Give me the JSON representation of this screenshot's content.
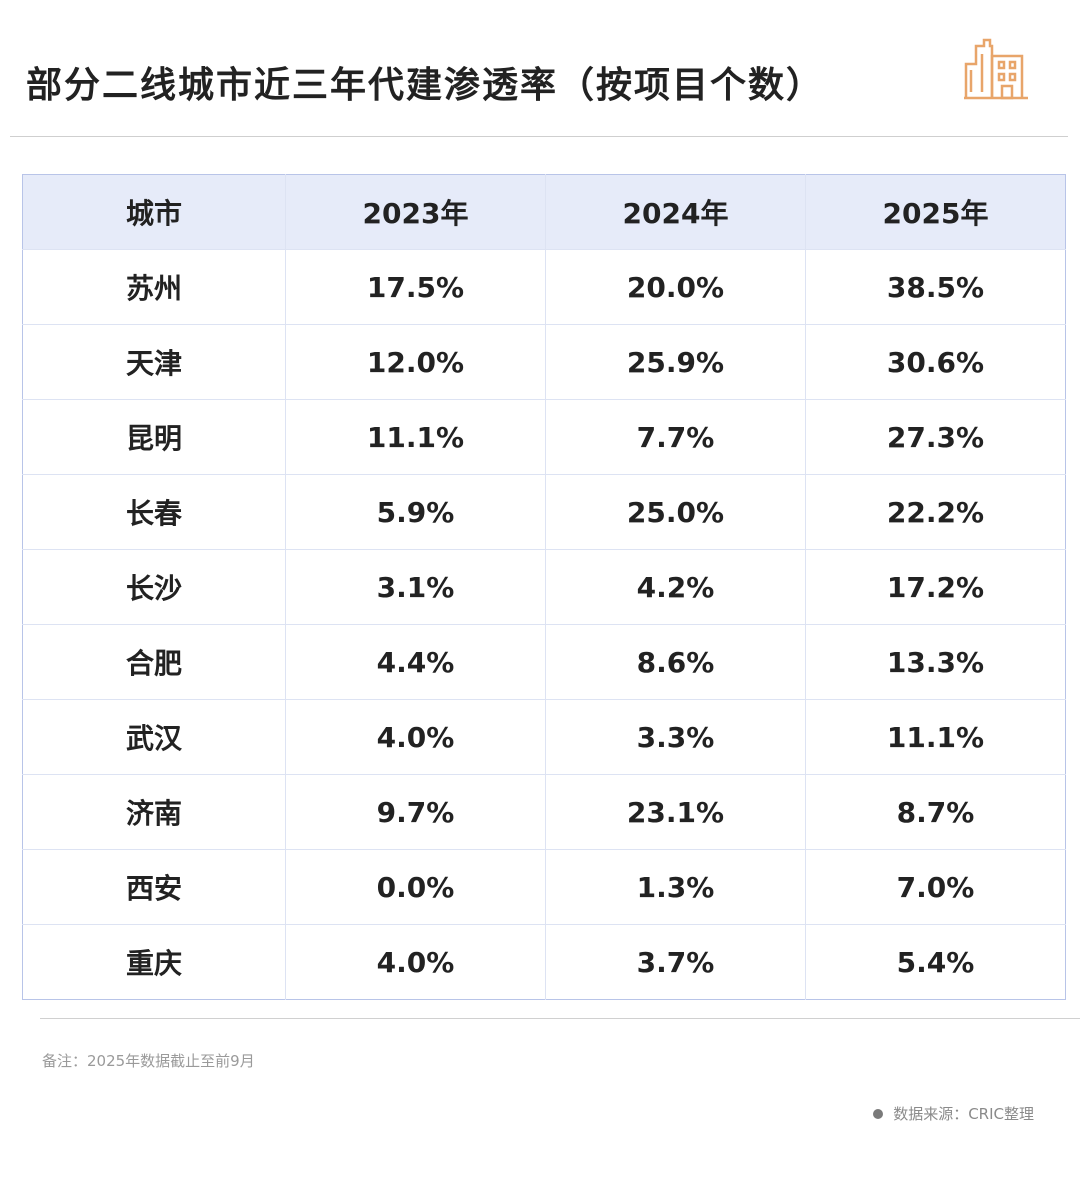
{
  "page_title": "部分二线城市近三年代建渗透率（按项目个数）",
  "logo_icon": "building-icon",
  "accent_color": "#e6ebf9",
  "table": {
    "headers": [
      "城市",
      "2023年",
      "2024年",
      "2025年"
    ],
    "rows": [
      [
        "苏州",
        "17.5%",
        "20.0%",
        "38.5%"
      ],
      [
        "天津",
        "12.0%",
        "25.9%",
        "30.6%"
      ],
      [
        "昆明",
        "11.1%",
        "7.7%",
        "27.3%"
      ],
      [
        "长春",
        "5.9%",
        "25.0%",
        "22.2%"
      ],
      [
        "长沙",
        "3.1%",
        "4.2%",
        "17.2%"
      ],
      [
        "合肥",
        "4.4%",
        "8.6%",
        "13.3%"
      ],
      [
        "武汉",
        "4.0%",
        "3.3%",
        "11.1%"
      ],
      [
        "济南",
        "9.7%",
        "23.1%",
        "8.7%"
      ],
      [
        "西安",
        "0.0%",
        "1.3%",
        "7.0%"
      ],
      [
        "重庆",
        "4.0%",
        "3.7%",
        "5.4%"
      ]
    ]
  },
  "chart_data": {
    "type": "table",
    "title": "部分二线城市近三年代建渗透率（按项目个数）",
    "columns": [
      "城市",
      "2023年",
      "2024年",
      "2025年"
    ],
    "categories": [
      "苏州",
      "天津",
      "昆明",
      "长春",
      "长沙",
      "合肥",
      "武汉",
      "济南",
      "西安",
      "重庆"
    ],
    "series": [
      {
        "name": "2023年",
        "values": [
          17.5,
          12.0,
          11.1,
          5.9,
          3.1,
          4.4,
          4.0,
          9.7,
          0.0,
          4.0
        ]
      },
      {
        "name": "2024年",
        "values": [
          20.0,
          25.9,
          7.7,
          25.0,
          4.2,
          8.6,
          3.3,
          23.1,
          1.3,
          3.7
        ]
      },
      {
        "name": "2025年",
        "values": [
          38.5,
          30.6,
          27.3,
          22.2,
          17.2,
          13.3,
          11.1,
          8.7,
          7.0,
          5.4
        ]
      }
    ],
    "unit": "%"
  },
  "note": "备注：2025年数据截止至前9月",
  "source": "数据来源：CRIC整理"
}
